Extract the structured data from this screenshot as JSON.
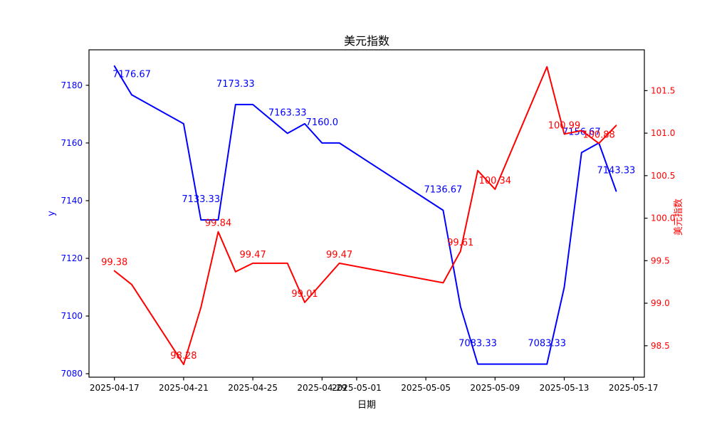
{
  "figure": {
    "title": "美元指数",
    "xlabel": "日期",
    "ylabel_left": "y",
    "ylabel_right": "美元指数",
    "background": "#ffffff",
    "axis_color": "#000000",
    "left_axis_text_color": "#0000ff",
    "right_axis_text_color": "#ff0000"
  },
  "chart_data": {
    "type": "line",
    "title": "美元指数",
    "xlabel": "日期",
    "ylabel_left": "y",
    "ylabel_right": "美元指数",
    "grid": false,
    "legend": null,
    "x": [
      "2025-04-17",
      "2025-04-18",
      "2025-04-21",
      "2025-04-22",
      "2025-04-23",
      "2025-04-24",
      "2025-04-25",
      "2025-04-27",
      "2025-04-28",
      "2025-04-29",
      "2025-04-30",
      "2025-05-06",
      "2025-05-07",
      "2025-05-08",
      "2025-05-09",
      "2025-05-12",
      "2025-05-13",
      "2025-05-14",
      "2025-05-15",
      "2025-05-16"
    ],
    "series": [
      {
        "name": "y",
        "axis": "left",
        "color": "#0000ff",
        "values": [
          7186.67,
          7176.67,
          7166.67,
          7133.33,
          7133.33,
          7173.33,
          7173.33,
          7163.33,
          7166.67,
          7160.0,
          7160.0,
          7136.67,
          7103.33,
          7083.33,
          7083.33,
          7083.33,
          7110.0,
          7156.67,
          7160.0,
          7143.33
        ],
        "annotations": [
          {
            "index": 1,
            "label": "7176.67"
          },
          {
            "index": 3,
            "label": "7133.33"
          },
          {
            "index": 5,
            "label": "7173.33"
          },
          {
            "index": 7,
            "label": "7163.33"
          },
          {
            "index": 9,
            "label": "7160.0"
          },
          {
            "index": 11,
            "label": "7136.67"
          },
          {
            "index": 13,
            "label": "7083.33"
          },
          {
            "index": 15,
            "label": "7083.33"
          },
          {
            "index": 17,
            "label": "7156.67"
          },
          {
            "index": 19,
            "label": "7143.33"
          }
        ]
      },
      {
        "name": "美元指数",
        "axis": "right",
        "color": "#ff0000",
        "values": [
          99.38,
          99.22,
          98.28,
          98.95,
          99.84,
          99.37,
          99.47,
          99.47,
          99.01,
          99.24,
          99.47,
          99.24,
          99.61,
          100.56,
          100.34,
          101.78,
          100.99,
          101.03,
          100.88,
          101.09
        ],
        "annotations": [
          {
            "index": 0,
            "label": "99.38"
          },
          {
            "index": 2,
            "label": "98.28"
          },
          {
            "index": 4,
            "label": "99.84"
          },
          {
            "index": 6,
            "label": "99.47"
          },
          {
            "index": 8,
            "label": "99.01"
          },
          {
            "index": 10,
            "label": "99.47"
          },
          {
            "index": 12,
            "label": "99.61"
          },
          {
            "index": 14,
            "label": "100.34"
          },
          {
            "index": 16,
            "label": "100.99"
          },
          {
            "index": 18,
            "label": "100.88"
          }
        ]
      }
    ],
    "x_ticks": [
      "2025-04-17",
      "2025-04-21",
      "2025-04-25",
      "2025-04-29",
      "2025-05-01",
      "2025-05-05",
      "2025-05-09",
      "2025-05-13",
      "2025-05-17"
    ],
    "y_ticks_left": [
      7080,
      7100,
      7120,
      7140,
      7160,
      7180
    ],
    "y_ticks_right": [
      98.5,
      99.0,
      99.5,
      100.0,
      100.5,
      101.0,
      101.5
    ],
    "ylim_left": [
      7078.8,
      7192.3
    ],
    "ylim_right": [
      98.13,
      101.98
    ],
    "xlim_days": [
      -1.47,
      30.63
    ]
  }
}
